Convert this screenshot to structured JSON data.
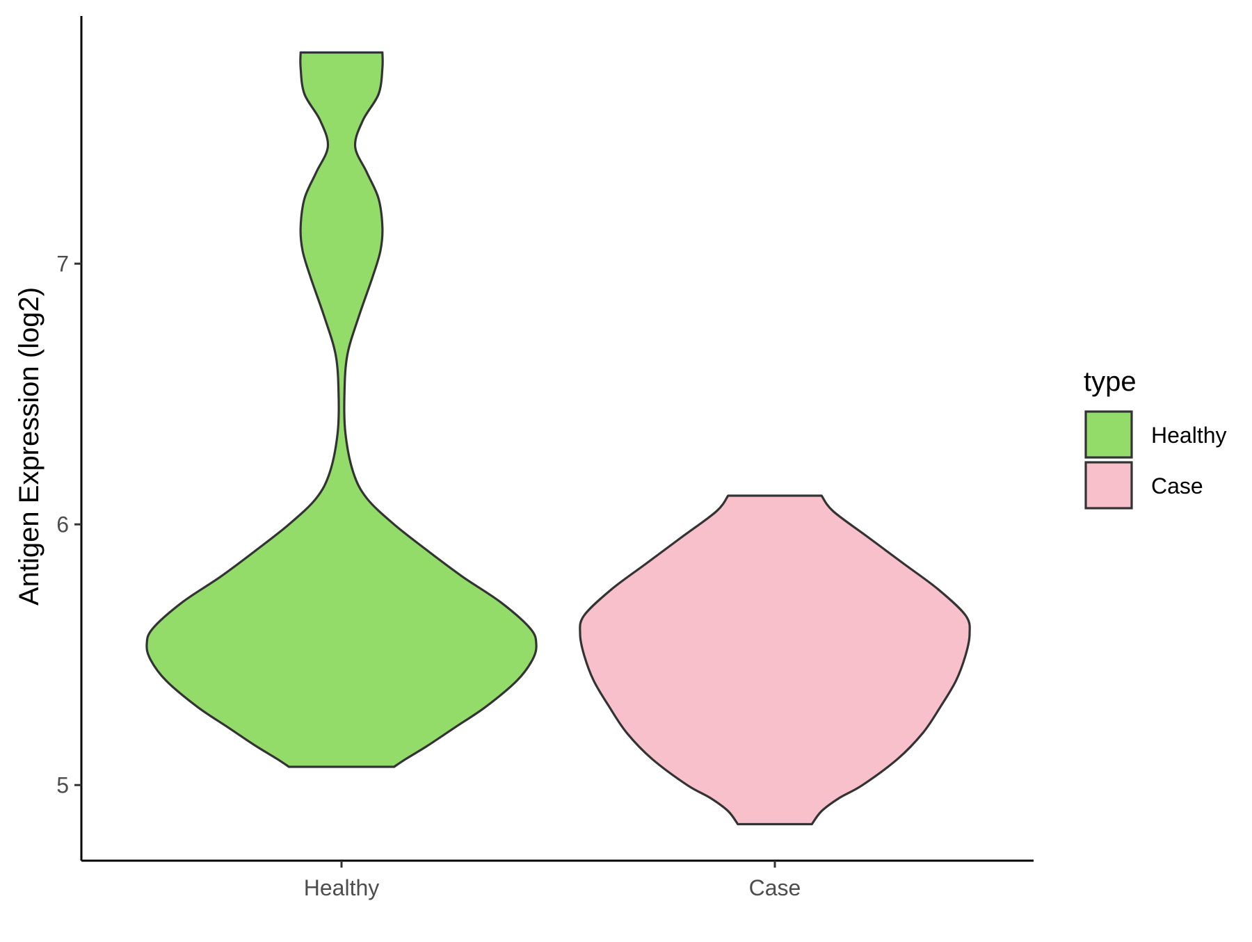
{
  "chart_data": {
    "type": "violin",
    "title": "",
    "xlabel": "",
    "ylabel": "Antigen Expression (log2)",
    "ylim": [
      4.71,
      7.95
    ],
    "y_ticks": [
      5,
      6,
      7
    ],
    "grid": false,
    "categories": [
      "Healthy",
      "Case"
    ],
    "legend": {
      "title": "type",
      "placement": "right",
      "items": [
        {
          "label": "Healthy",
          "color": "#93DC6A"
        },
        {
          "label": "Case",
          "color": "#F8C0CB"
        }
      ]
    },
    "series": [
      {
        "name": "Healthy",
        "color": "#93DC6A",
        "min": 5.07,
        "max": 7.81,
        "profile": [
          [
            5.07,
            0.27
          ],
          [
            5.1,
            0.33
          ],
          [
            5.15,
            0.44
          ],
          [
            5.22,
            0.58
          ],
          [
            5.3,
            0.74
          ],
          [
            5.4,
            0.9
          ],
          [
            5.48,
            0.98
          ],
          [
            5.54,
            1.0
          ],
          [
            5.6,
            0.97
          ],
          [
            5.7,
            0.82
          ],
          [
            5.8,
            0.62
          ],
          [
            5.9,
            0.44
          ],
          [
            6.0,
            0.27
          ],
          [
            6.1,
            0.13
          ],
          [
            6.2,
            0.06
          ],
          [
            6.35,
            0.02
          ],
          [
            6.5,
            0.015
          ],
          [
            6.65,
            0.03
          ],
          [
            6.8,
            0.09
          ],
          [
            6.95,
            0.16
          ],
          [
            7.05,
            0.2
          ],
          [
            7.14,
            0.21
          ],
          [
            7.25,
            0.19
          ],
          [
            7.35,
            0.13
          ],
          [
            7.45,
            0.07
          ],
          [
            7.55,
            0.11
          ],
          [
            7.65,
            0.19
          ],
          [
            7.75,
            0.21
          ],
          [
            7.81,
            0.21
          ]
        ]
      },
      {
        "name": "Case",
        "color": "#F8C0CB",
        "min": 4.85,
        "max": 6.11,
        "profile": [
          [
            4.85,
            0.19
          ],
          [
            4.9,
            0.24
          ],
          [
            4.95,
            0.33
          ],
          [
            5.0,
            0.45
          ],
          [
            5.1,
            0.63
          ],
          [
            5.2,
            0.76
          ],
          [
            5.3,
            0.85
          ],
          [
            5.4,
            0.93
          ],
          [
            5.5,
            0.98
          ],
          [
            5.58,
            1.0
          ],
          [
            5.65,
            0.98
          ],
          [
            5.75,
            0.84
          ],
          [
            5.85,
            0.66
          ],
          [
            5.95,
            0.48
          ],
          [
            6.05,
            0.3
          ],
          [
            6.11,
            0.24
          ]
        ]
      }
    ]
  }
}
